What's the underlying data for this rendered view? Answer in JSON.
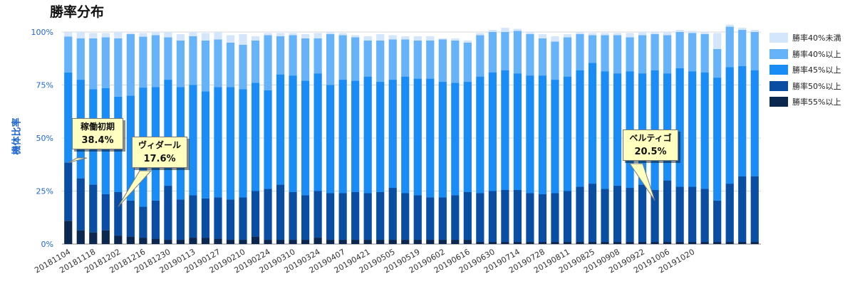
{
  "title": "勝率分布",
  "chart_data": {
    "type": "bar",
    "stacked": true,
    "ylabel": "機体比率",
    "ylim": [
      0,
      100
    ],
    "y_ticks": [
      "0%",
      "25%",
      "50%",
      "75%",
      "100%"
    ],
    "x_tick_labels": [
      "20181104",
      "20181118",
      "20181202",
      "20181216",
      "20181230",
      "20190113",
      "20190127",
      "20190210",
      "20190224",
      "20190310",
      "20190324",
      "20190407",
      "20190421",
      "20190505",
      "20190519",
      "20190602",
      "20190616",
      "20190630",
      "20190714",
      "20190728",
      "20190811",
      "20190825",
      "20190908",
      "20190922",
      "20191006",
      "20191020"
    ],
    "grid": true,
    "legend_position": "right",
    "series": [
      {
        "name": "勝率55%以上",
        "color": "#0d2850",
        "values": [
          11,
          6.5,
          5.5,
          6.5,
          4,
          3.5,
          3,
          2.5,
          2,
          2,
          3,
          3,
          2.5,
          2,
          2,
          3.5,
          2,
          2,
          2,
          2,
          3,
          2,
          2,
          2,
          2,
          2,
          2,
          2,
          2,
          2,
          2,
          2,
          2,
          1,
          1,
          1,
          1,
          1,
          1,
          1,
          1,
          1,
          1,
          1,
          1,
          1,
          1,
          1,
          1,
          1,
          1,
          1,
          1,
          1,
          1,
          1
        ]
      },
      {
        "name": "勝率50%以上",
        "color": "#0a4ea3",
        "values": [
          27.4,
          24.5,
          22.5,
          17,
          20.5,
          17,
          14.6,
          18,
          25.5,
          19,
          20,
          18.5,
          19.5,
          19,
          20,
          21.5,
          24,
          26,
          22.5,
          21,
          22,
          22,
          22,
          22.5,
          22,
          22.5,
          24.5,
          22,
          21,
          20,
          20,
          21,
          22.5,
          23,
          24,
          24.5,
          24.5,
          23,
          22.5,
          23,
          24,
          26,
          27.5,
          25,
          26.5,
          25.5,
          27,
          24.5,
          29,
          26,
          26,
          25,
          19.5,
          27.5,
          31,
          31
        ]
      },
      {
        "name": "勝率45%以上",
        "color": "#1a8cf5",
        "values": [
          42.5,
          46.5,
          45,
          50,
          45,
          49.5,
          56.2,
          53.5,
          50,
          53,
          52,
          50.5,
          52,
          53,
          51,
          51,
          46.5,
          52,
          55,
          54,
          55.5,
          51,
          53.5,
          52.5,
          55,
          52,
          51,
          55,
          55,
          56,
          54.5,
          53,
          52,
          55,
          56,
          56.5,
          55,
          55.5,
          56,
          53.5,
          54,
          55,
          57,
          55.5,
          53,
          55,
          52.5,
          56.5,
          50.5,
          56,
          54.5,
          55,
          58,
          55,
          52,
          50
        ]
      },
      {
        "name": "勝率40%以上",
        "color": "#66b3fa",
        "values": [
          17,
          19.5,
          24,
          24,
          27.5,
          29,
          24,
          24.5,
          20,
          22,
          23,
          24,
          22.5,
          21,
          21,
          20,
          26,
          18,
          19,
          20,
          16.5,
          24,
          21,
          20.5,
          17,
          19.5,
          19,
          17.5,
          18,
          18,
          20,
          20,
          18.5,
          19.5,
          19,
          18,
          20,
          19.5,
          17.5,
          18,
          18.5,
          17,
          13,
          17,
          18,
          16,
          18,
          17,
          18,
          17,
          18,
          18,
          13.5,
          19,
          17,
          18
        ]
      },
      {
        "name": "勝率40%未満",
        "color": "#d3e6fb",
        "values": [
          2,
          3,
          2.5,
          2,
          3,
          0.5,
          1.7,
          1.5,
          2.5,
          3,
          2,
          3.5,
          3.5,
          3.5,
          5,
          2,
          1,
          1.5,
          1,
          2,
          2.5,
          1,
          1,
          1,
          2,
          3,
          2,
          1.5,
          2,
          2,
          0.5,
          1,
          1,
          1,
          1,
          2,
          1,
          1,
          2,
          2.5,
          1.5,
          1,
          1,
          1,
          1,
          2,
          1.5,
          1,
          1.5,
          1,
          1,
          1,
          7.5,
          1,
          1,
          1
        ]
      }
    ],
    "annotations": [
      {
        "label": "稼働初期",
        "value": "38.4%"
      },
      {
        "label": "ヴィダール",
        "value": "17.6%"
      },
      {
        "label": "ベルティゴ",
        "value": "20.5%"
      }
    ]
  }
}
